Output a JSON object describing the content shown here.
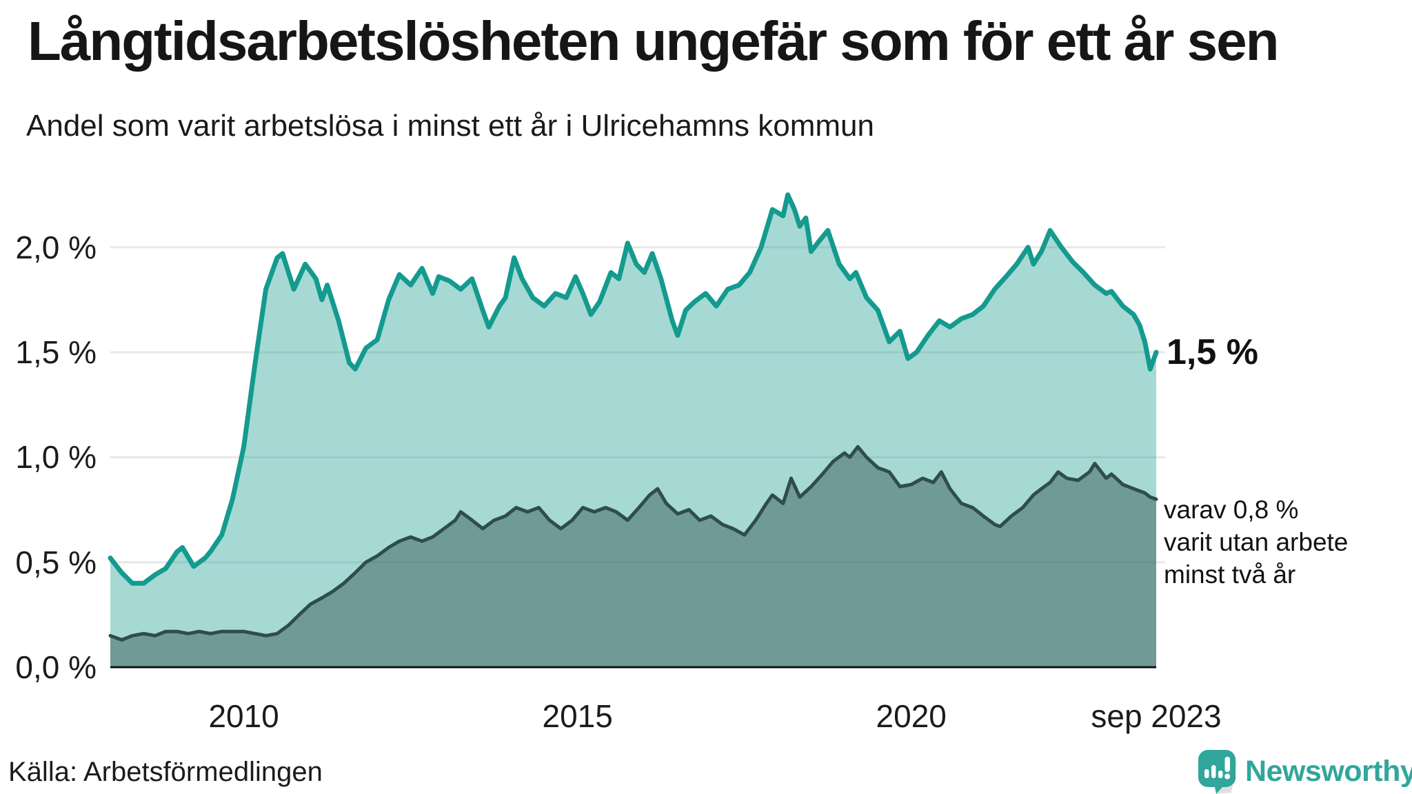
{
  "header": {
    "title": "Långtidsarbetslösheten ungefär som för ett år sen",
    "subtitle": "Andel som varit arbetslösa i minst ett år i Ulricehamns kommun"
  },
  "chart_data": {
    "type": "area",
    "title": "Långtidsarbetslösheten ungefär som för ett år sen",
    "xlabel": "",
    "ylabel": "",
    "xlim": [
      2008.0,
      2023.67
    ],
    "ylim": [
      0,
      2.3
    ],
    "grid": true,
    "legend_position": "none",
    "y_ticks": [
      {
        "value": 2.0,
        "label": "2,0 %"
      },
      {
        "value": 1.5,
        "label": "1,5 %"
      },
      {
        "value": 1.0,
        "label": "1,0 %"
      },
      {
        "value": 0.5,
        "label": "0,5 %"
      },
      {
        "value": 0.0,
        "label": "0,0 %"
      }
    ],
    "x_ticks": [
      {
        "value": 2010,
        "label": "2010"
      },
      {
        "value": 2015,
        "label": "2015"
      },
      {
        "value": 2020,
        "label": "2020"
      },
      {
        "value": 2023.67,
        "label": "sep 2023"
      }
    ],
    "series": [
      {
        "name": "arbetslösa minst ett år",
        "line_color": "#149a8e",
        "fill_color": "#149a8e",
        "fill_opacity": 0.38,
        "line_width": 7,
        "end_value_label": "1,5 %",
        "points": [
          [
            2008.0,
            0.52
          ],
          [
            2008.17,
            0.45
          ],
          [
            2008.33,
            0.4
          ],
          [
            2008.5,
            0.4
          ],
          [
            2008.67,
            0.44
          ],
          [
            2008.83,
            0.47
          ],
          [
            2009.0,
            0.55
          ],
          [
            2009.08,
            0.57
          ],
          [
            2009.25,
            0.48
          ],
          [
            2009.42,
            0.52
          ],
          [
            2009.5,
            0.55
          ],
          [
            2009.67,
            0.63
          ],
          [
            2009.83,
            0.8
          ],
          [
            2010.0,
            1.05
          ],
          [
            2010.17,
            1.45
          ],
          [
            2010.33,
            1.8
          ],
          [
            2010.5,
            1.95
          ],
          [
            2010.58,
            1.97
          ],
          [
            2010.75,
            1.8
          ],
          [
            2010.92,
            1.92
          ],
          [
            2011.08,
            1.85
          ],
          [
            2011.17,
            1.75
          ],
          [
            2011.25,
            1.82
          ],
          [
            2011.42,
            1.65
          ],
          [
            2011.58,
            1.45
          ],
          [
            2011.67,
            1.42
          ],
          [
            2011.83,
            1.52
          ],
          [
            2012.0,
            1.56
          ],
          [
            2012.17,
            1.75
          ],
          [
            2012.33,
            1.87
          ],
          [
            2012.5,
            1.82
          ],
          [
            2012.67,
            1.9
          ],
          [
            2012.83,
            1.78
          ],
          [
            2012.92,
            1.86
          ],
          [
            2013.08,
            1.84
          ],
          [
            2013.25,
            1.8
          ],
          [
            2013.42,
            1.85
          ],
          [
            2013.58,
            1.7
          ],
          [
            2013.67,
            1.62
          ],
          [
            2013.83,
            1.72
          ],
          [
            2013.92,
            1.76
          ],
          [
            2014.05,
            1.95
          ],
          [
            2014.17,
            1.85
          ],
          [
            2014.33,
            1.76
          ],
          [
            2014.5,
            1.72
          ],
          [
            2014.67,
            1.78
          ],
          [
            2014.83,
            1.76
          ],
          [
            2014.97,
            1.86
          ],
          [
            2015.08,
            1.78
          ],
          [
            2015.2,
            1.68
          ],
          [
            2015.33,
            1.74
          ],
          [
            2015.5,
            1.88
          ],
          [
            2015.62,
            1.85
          ],
          [
            2015.75,
            2.02
          ],
          [
            2015.88,
            1.92
          ],
          [
            2016.0,
            1.88
          ],
          [
            2016.12,
            1.97
          ],
          [
            2016.25,
            1.85
          ],
          [
            2016.42,
            1.65
          ],
          [
            2016.5,
            1.58
          ],
          [
            2016.62,
            1.7
          ],
          [
            2016.75,
            1.74
          ],
          [
            2016.92,
            1.78
          ],
          [
            2017.08,
            1.72
          ],
          [
            2017.25,
            1.8
          ],
          [
            2017.42,
            1.82
          ],
          [
            2017.58,
            1.88
          ],
          [
            2017.75,
            2.0
          ],
          [
            2017.92,
            2.18
          ],
          [
            2018.08,
            2.15
          ],
          [
            2018.15,
            2.25
          ],
          [
            2018.25,
            2.18
          ],
          [
            2018.33,
            2.1
          ],
          [
            2018.42,
            2.14
          ],
          [
            2018.5,
            1.98
          ],
          [
            2018.62,
            2.03
          ],
          [
            2018.75,
            2.08
          ],
          [
            2018.92,
            1.92
          ],
          [
            2019.08,
            1.85
          ],
          [
            2019.17,
            1.88
          ],
          [
            2019.33,
            1.76
          ],
          [
            2019.5,
            1.7
          ],
          [
            2019.67,
            1.55
          ],
          [
            2019.83,
            1.6
          ],
          [
            2019.95,
            1.47
          ],
          [
            2020.08,
            1.5
          ],
          [
            2020.25,
            1.58
          ],
          [
            2020.42,
            1.65
          ],
          [
            2020.58,
            1.62
          ],
          [
            2020.75,
            1.66
          ],
          [
            2020.92,
            1.68
          ],
          [
            2021.08,
            1.72
          ],
          [
            2021.25,
            1.8
          ],
          [
            2021.42,
            1.86
          ],
          [
            2021.58,
            1.92
          ],
          [
            2021.75,
            2.0
          ],
          [
            2021.83,
            1.92
          ],
          [
            2021.95,
            1.98
          ],
          [
            2022.08,
            2.08
          ],
          [
            2022.25,
            2.0
          ],
          [
            2022.42,
            1.93
          ],
          [
            2022.58,
            1.88
          ],
          [
            2022.75,
            1.82
          ],
          [
            2022.92,
            1.78
          ],
          [
            2023.0,
            1.79
          ],
          [
            2023.17,
            1.72
          ],
          [
            2023.33,
            1.68
          ],
          [
            2023.42,
            1.63
          ],
          [
            2023.5,
            1.55
          ],
          [
            2023.58,
            1.42
          ],
          [
            2023.67,
            1.5
          ]
        ]
      },
      {
        "name": "varav utan arbete minst två år",
        "line_color": "#2f4d49",
        "fill_color": "#2f4d49",
        "fill_opacity": 0.45,
        "line_width": 5,
        "end_value_label": "varav 0,8 %",
        "points": [
          [
            2008.0,
            0.15
          ],
          [
            2008.17,
            0.13
          ],
          [
            2008.33,
            0.15
          ],
          [
            2008.5,
            0.16
          ],
          [
            2008.67,
            0.15
          ],
          [
            2008.83,
            0.17
          ],
          [
            2009.0,
            0.17
          ],
          [
            2009.17,
            0.16
          ],
          [
            2009.33,
            0.17
          ],
          [
            2009.5,
            0.16
          ],
          [
            2009.67,
            0.17
          ],
          [
            2009.83,
            0.17
          ],
          [
            2010.0,
            0.17
          ],
          [
            2010.17,
            0.16
          ],
          [
            2010.33,
            0.15
          ],
          [
            2010.5,
            0.16
          ],
          [
            2010.67,
            0.2
          ],
          [
            2010.83,
            0.25
          ],
          [
            2011.0,
            0.3
          ],
          [
            2011.17,
            0.33
          ],
          [
            2011.33,
            0.36
          ],
          [
            2011.5,
            0.4
          ],
          [
            2011.67,
            0.45
          ],
          [
            2011.83,
            0.5
          ],
          [
            2012.0,
            0.53
          ],
          [
            2012.17,
            0.57
          ],
          [
            2012.33,
            0.6
          ],
          [
            2012.5,
            0.62
          ],
          [
            2012.67,
            0.6
          ],
          [
            2012.83,
            0.62
          ],
          [
            2013.0,
            0.66
          ],
          [
            2013.17,
            0.7
          ],
          [
            2013.25,
            0.74
          ],
          [
            2013.42,
            0.7
          ],
          [
            2013.58,
            0.66
          ],
          [
            2013.75,
            0.7
          ],
          [
            2013.92,
            0.72
          ],
          [
            2014.08,
            0.76
          ],
          [
            2014.25,
            0.74
          ],
          [
            2014.42,
            0.76
          ],
          [
            2014.58,
            0.7
          ],
          [
            2014.75,
            0.66
          ],
          [
            2014.92,
            0.7
          ],
          [
            2015.08,
            0.76
          ],
          [
            2015.25,
            0.74
          ],
          [
            2015.42,
            0.76
          ],
          [
            2015.58,
            0.74
          ],
          [
            2015.75,
            0.7
          ],
          [
            2015.92,
            0.76
          ],
          [
            2016.08,
            0.82
          ],
          [
            2016.2,
            0.85
          ],
          [
            2016.33,
            0.78
          ],
          [
            2016.5,
            0.73
          ],
          [
            2016.67,
            0.75
          ],
          [
            2016.83,
            0.7
          ],
          [
            2017.0,
            0.72
          ],
          [
            2017.17,
            0.68
          ],
          [
            2017.33,
            0.66
          ],
          [
            2017.5,
            0.63
          ],
          [
            2017.67,
            0.7
          ],
          [
            2017.83,
            0.78
          ],
          [
            2017.92,
            0.82
          ],
          [
            2018.08,
            0.78
          ],
          [
            2018.2,
            0.9
          ],
          [
            2018.33,
            0.81
          ],
          [
            2018.5,
            0.86
          ],
          [
            2018.67,
            0.92
          ],
          [
            2018.83,
            0.98
          ],
          [
            2019.0,
            1.02
          ],
          [
            2019.08,
            1.0
          ],
          [
            2019.2,
            1.05
          ],
          [
            2019.33,
            1.0
          ],
          [
            2019.5,
            0.95
          ],
          [
            2019.67,
            0.93
          ],
          [
            2019.83,
            0.86
          ],
          [
            2020.0,
            0.87
          ],
          [
            2020.17,
            0.9
          ],
          [
            2020.33,
            0.88
          ],
          [
            2020.45,
            0.93
          ],
          [
            2020.58,
            0.85
          ],
          [
            2020.75,
            0.78
          ],
          [
            2020.92,
            0.76
          ],
          [
            2021.08,
            0.72
          ],
          [
            2021.25,
            0.68
          ],
          [
            2021.33,
            0.67
          ],
          [
            2021.5,
            0.72
          ],
          [
            2021.67,
            0.76
          ],
          [
            2021.83,
            0.82
          ],
          [
            2021.95,
            0.85
          ],
          [
            2022.08,
            0.88
          ],
          [
            2022.2,
            0.93
          ],
          [
            2022.33,
            0.9
          ],
          [
            2022.5,
            0.89
          ],
          [
            2022.67,
            0.93
          ],
          [
            2022.75,
            0.97
          ],
          [
            2022.92,
            0.9
          ],
          [
            2023.0,
            0.92
          ],
          [
            2023.17,
            0.87
          ],
          [
            2023.33,
            0.85
          ],
          [
            2023.5,
            0.83
          ],
          [
            2023.58,
            0.81
          ],
          [
            2023.67,
            0.8
          ]
        ]
      }
    ]
  },
  "annotations": {
    "total_label": "1,5 %",
    "sub_label": "varav 0,8 %\nvarit utan arbete\nminst två år"
  },
  "footer": {
    "source": "Källa: Arbetsförmedlingen",
    "brand": "Newsworthy"
  },
  "colors": {
    "accent_teal": "#149a8e",
    "dark_series": "#2f4d49",
    "gridline": "#e8e8eb",
    "axis": "#111111",
    "text": "#1a1a1a",
    "brand_teal": "#31a69a"
  }
}
